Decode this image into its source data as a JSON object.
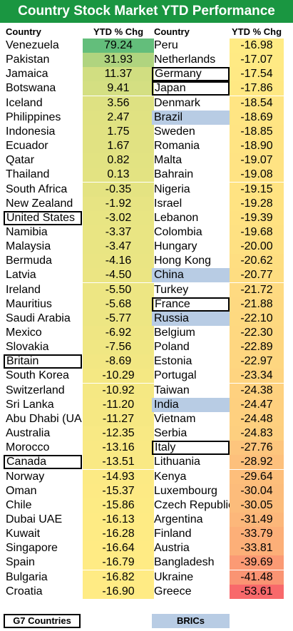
{
  "title": "Country Stock Market YTD Performance",
  "headers": {
    "country": "Country",
    "value": "YTD % Chg"
  },
  "legend": {
    "g7": "G7 Countries",
    "bric": "BRICs"
  },
  "chart_data": {
    "type": "table",
    "columns": [
      [
        {
          "country": "Venezuela",
          "value": "79.24"
        },
        {
          "country": "Pakistan",
          "value": "31.93"
        },
        {
          "country": "Jamaica",
          "value": "11.37"
        },
        {
          "country": "Botswana",
          "value": "9.41"
        },
        {
          "country": "Iceland",
          "value": "3.56"
        },
        {
          "country": "Philippines",
          "value": "2.47"
        },
        {
          "country": "Indonesia",
          "value": "1.75"
        },
        {
          "country": "Ecuador",
          "value": "1.67"
        },
        {
          "country": "Qatar",
          "value": "0.82"
        },
        {
          "country": "Thailand",
          "value": "0.13"
        },
        {
          "country": "South Africa",
          "value": "-0.35"
        },
        {
          "country": "New Zealand",
          "value": "-1.92"
        },
        {
          "country": "United States",
          "value": "-3.02",
          "group": "g7"
        },
        {
          "country": "Namibia",
          "value": "-3.37"
        },
        {
          "country": "Malaysia",
          "value": "-3.47"
        },
        {
          "country": "Bermuda",
          "value": "-4.16"
        },
        {
          "country": "Latvia",
          "value": "-4.50"
        },
        {
          "country": "Ireland",
          "value": "-5.50"
        },
        {
          "country": "Mauritius",
          "value": "-5.68"
        },
        {
          "country": "Saudi Arabia",
          "value": "-5.77"
        },
        {
          "country": "Mexico",
          "value": "-6.92"
        },
        {
          "country": "Slovakia",
          "value": "-7.56"
        },
        {
          "country": "Britain",
          "value": "-8.69",
          "group": "g7"
        },
        {
          "country": "South Korea",
          "value": "-10.29"
        },
        {
          "country": "Switzerland",
          "value": "-10.92"
        },
        {
          "country": "Sri Lanka",
          "value": "-11.20"
        },
        {
          "country": "Abu Dhabi (UAE)",
          "value": "-11.27"
        },
        {
          "country": "Australia",
          "value": "-12.35"
        },
        {
          "country": "Morocco",
          "value": "-13.16"
        },
        {
          "country": "Canada",
          "value": "-13.51",
          "group": "g7"
        },
        {
          "country": "Norway",
          "value": "-14.93"
        },
        {
          "country": "Oman",
          "value": "-15.37"
        },
        {
          "country": "Chile",
          "value": "-15.86"
        },
        {
          "country": "Dubai UAE",
          "value": "-16.13"
        },
        {
          "country": "Kuwait",
          "value": "-16.28"
        },
        {
          "country": "Singapore",
          "value": "-16.64"
        },
        {
          "country": "Spain",
          "value": "-16.79"
        },
        {
          "country": "Bulgaria",
          "value": "-16.82"
        },
        {
          "country": "Croatia",
          "value": "-16.90"
        }
      ],
      [
        {
          "country": "Peru",
          "value": "-16.98"
        },
        {
          "country": "Netherlands",
          "value": "-17.07"
        },
        {
          "country": "Germany",
          "value": "-17.54",
          "group": "g7"
        },
        {
          "country": "Japan",
          "value": "-17.86",
          "group": "g7"
        },
        {
          "country": "Denmark",
          "value": "-18.54"
        },
        {
          "country": "Brazil",
          "value": "-18.69",
          "group": "bric"
        },
        {
          "country": "Sweden",
          "value": "-18.85"
        },
        {
          "country": "Romania",
          "value": "-18.90"
        },
        {
          "country": "Malta",
          "value": "-19.07"
        },
        {
          "country": "Bahrain",
          "value": "-19.08"
        },
        {
          "country": "Nigeria",
          "value": "-19.15"
        },
        {
          "country": "Israel",
          "value": "-19.28"
        },
        {
          "country": "Lebanon",
          "value": "-19.39"
        },
        {
          "country": "Colombia",
          "value": "-19.68"
        },
        {
          "country": "Hungary",
          "value": "-20.00"
        },
        {
          "country": "Hong Kong",
          "value": "-20.62"
        },
        {
          "country": "China",
          "value": "-20.77",
          "group": "bric"
        },
        {
          "country": "Turkey",
          "value": "-21.72"
        },
        {
          "country": "France",
          "value": "-21.88",
          "group": "g7"
        },
        {
          "country": "Russia",
          "value": "-22.10",
          "group": "bric"
        },
        {
          "country": "Belgium",
          "value": "-22.30"
        },
        {
          "country": "Poland",
          "value": "-22.89"
        },
        {
          "country": "Estonia",
          "value": "-22.97"
        },
        {
          "country": "Portugal",
          "value": "-23.34"
        },
        {
          "country": "Taiwan",
          "value": "-24.38"
        },
        {
          "country": "India",
          "value": "-24.47",
          "group": "bric"
        },
        {
          "country": "Vietnam",
          "value": "-24.48"
        },
        {
          "country": "Serbia",
          "value": "-24.83"
        },
        {
          "country": "Italy",
          "value": "-27.76",
          "group": "g7"
        },
        {
          "country": "Lithuania",
          "value": "-28.92"
        },
        {
          "country": "Kenya",
          "value": "-29.64"
        },
        {
          "country": "Luxembourg",
          "value": "-30.04"
        },
        {
          "country": "Czech Republic",
          "value": "-30.05"
        },
        {
          "country": "Argentina",
          "value": "-31.49"
        },
        {
          "country": "Finland",
          "value": "-33.79"
        },
        {
          "country": "Austria",
          "value": "-33.81"
        },
        {
          "country": "Bangladesh",
          "value": "-39.69"
        },
        {
          "country": "Ukraine",
          "value": "-41.48"
        },
        {
          "country": "Greece",
          "value": "-53.61"
        }
      ]
    ]
  },
  "colors": {
    "title_bg": "#1a9641",
    "scale_high": "#63be7b",
    "scale_mid": "#ffeb84",
    "scale_low": "#f8696b",
    "bric": "#b8cce4"
  }
}
